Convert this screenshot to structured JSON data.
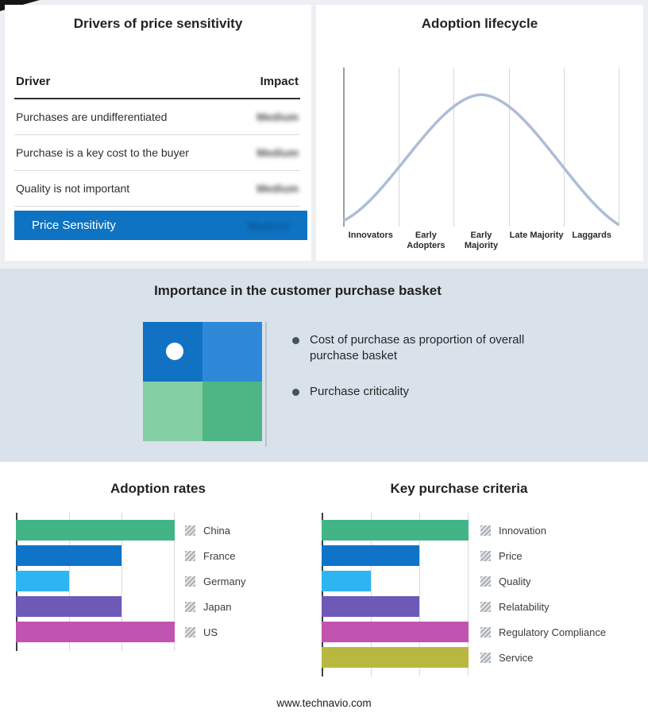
{
  "colors": {
    "accent_blue": "#0e73c2",
    "green": "#41b586",
    "blue": "#0f74c8",
    "cyan": "#2fb4f2",
    "purple": "#6e58b8",
    "magenta": "#c153b1",
    "olive": "#b8b840",
    "quad_tl": "#1172c4",
    "quad_tr": "#2f89d8",
    "quad_bl": "#85cfa5",
    "quad_br": "#4eb585",
    "curve": "#aebdd7",
    "band_bg": "#d9e2eb"
  },
  "drivers_panel": {
    "title": "Drivers of price sensitivity",
    "col_driver": "Driver",
    "col_impact": "Impact",
    "impact_values_blurred": true,
    "rows": [
      {
        "driver": "Purchases are undifferentiated",
        "impact": "Medium"
      },
      {
        "driver": "Purchase is a key cost to the buyer",
        "impact": "Medium"
      },
      {
        "driver": "Quality is not important",
        "impact": "Medium"
      }
    ],
    "highlight": {
      "label": "Price Sensitivity",
      "impact": "Medium"
    }
  },
  "lifecycle_panel": {
    "title": "Adoption lifecycle",
    "stages": [
      "Innovators",
      "Early Adopters",
      "Early Majority",
      "Late Majority",
      "Laggards"
    ]
  },
  "basket_panel": {
    "title": "Importance in the customer purchase basket",
    "bullets": [
      "Cost of purchase as proportion of overall purchase basket",
      "Purchase criticality"
    ]
  },
  "adoption_rates": {
    "title": "Adoption rates",
    "max": 3,
    "items": [
      {
        "label": "China",
        "value": 3,
        "color": "#41b586"
      },
      {
        "label": "France",
        "value": 2,
        "color": "#0f74c8"
      },
      {
        "label": "Germany",
        "value": 1,
        "color": "#2fb4f2"
      },
      {
        "label": "Japan",
        "value": 2,
        "color": "#6e58b8"
      },
      {
        "label": "US",
        "value": 3,
        "color": "#c153b1"
      }
    ]
  },
  "key_criteria": {
    "title": "Key purchase criteria",
    "max": 3,
    "items": [
      {
        "label": "Innovation",
        "value": 3,
        "color": "#41b586"
      },
      {
        "label": "Price",
        "value": 2,
        "color": "#0f74c8"
      },
      {
        "label": "Quality",
        "value": 1,
        "color": "#2fb4f2"
      },
      {
        "label": "Relatability",
        "value": 2,
        "color": "#6e58b8"
      },
      {
        "label": "Regulatory Compliance",
        "value": 3,
        "color": "#c153b1"
      },
      {
        "label": "Service",
        "value": 3,
        "color": "#b8b840"
      }
    ]
  },
  "footer": {
    "text": "www.technavio.com"
  },
  "chart_data": [
    {
      "type": "table",
      "title": "Drivers of price sensitivity",
      "columns": [
        "Driver",
        "Impact"
      ],
      "rows": [
        [
          "Purchases are undifferentiated",
          "Medium"
        ],
        [
          "Purchase is a key cost to the buyer",
          "Medium"
        ],
        [
          "Quality is not important",
          "Medium"
        ],
        [
          "Price Sensitivity",
          "Medium"
        ]
      ],
      "note": "Impact values shown blurred/redacted in source image"
    },
    {
      "type": "line",
      "title": "Adoption lifecycle",
      "categories": [
        "Innovators",
        "Early Adopters",
        "Early Majority",
        "Late Majority",
        "Laggards"
      ],
      "values": [
        0.05,
        0.55,
        1.0,
        0.55,
        0.05
      ],
      "description": "Bell curve peaking at Early Majority",
      "grid": true,
      "legend_position": "none"
    },
    {
      "type": "bar",
      "orientation": "horizontal",
      "title": "Adoption rates",
      "categories": [
        "China",
        "France",
        "Germany",
        "Japan",
        "US"
      ],
      "values": [
        3,
        2,
        1,
        2,
        3
      ],
      "xlim": [
        0,
        3
      ],
      "grid": true,
      "legend_position": "right"
    },
    {
      "type": "bar",
      "orientation": "horizontal",
      "title": "Key purchase criteria",
      "categories": [
        "Innovation",
        "Price",
        "Quality",
        "Relatability",
        "Regulatory Compliance",
        "Service"
      ],
      "values": [
        3,
        2,
        1,
        2,
        3,
        3
      ],
      "xlim": [
        0,
        3
      ],
      "grid": true,
      "legend_position": "right"
    }
  ]
}
